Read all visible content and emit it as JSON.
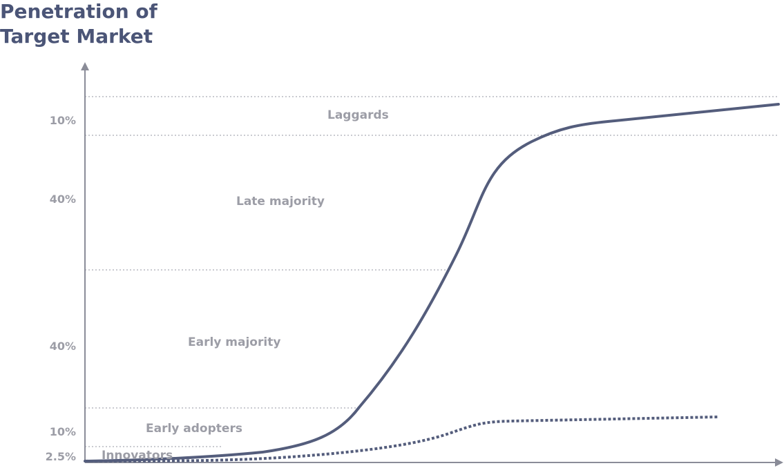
{
  "title": [
    "Penetration of",
    "Target Market"
  ],
  "segments": [
    {
      "name": "Innovators",
      "share": "2.5%"
    },
    {
      "name": "Early adopters",
      "share": "10%"
    },
    {
      "name": "Early majority",
      "share": "40%"
    },
    {
      "name": "Late majority",
      "share": "40%"
    },
    {
      "name": "Laggards",
      "share": "10%"
    }
  ]
}
